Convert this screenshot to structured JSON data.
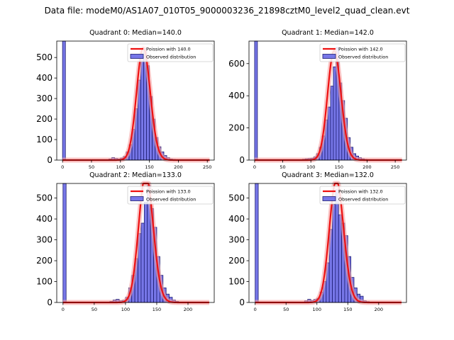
{
  "figure": {
    "suptitle": "Data file: modeM0/AS1A07_010T05_9000003236_21898cztM0_level2_quad_clean.evt"
  },
  "colors": {
    "bar_fill": "#7777e8",
    "bar_edge": "#1c1c70",
    "curve": "#ee1111",
    "curve_glow": "#f7a0a0"
  },
  "chart_data": [
    {
      "type": "bar",
      "title": "Quadrant 0: Median=140.0",
      "bin_width": 5,
      "xlim": [
        -10,
        262
      ],
      "ylim": [
        0,
        580
      ],
      "xticks": [
        0,
        50,
        100,
        150,
        200,
        250
      ],
      "yticks": [
        0,
        100,
        200,
        300,
        400,
        500
      ],
      "bins": [
        0,
        80,
        85,
        90,
        95,
        100,
        105,
        110,
        115,
        120,
        125,
        130,
        135,
        140,
        145,
        150,
        155,
        160,
        165,
        170,
        175,
        180,
        185,
        190
      ],
      "values": [
        580,
        5,
        12,
        8,
        5,
        10,
        18,
        40,
        75,
        150,
        250,
        390,
        515,
        545,
        460,
        310,
        200,
        110,
        65,
        40,
        22,
        12,
        5,
        3
      ],
      "poisson_mean": 140,
      "legend": [
        "Poission with 140.0",
        "Observed distribution"
      ]
    },
    {
      "type": "bar",
      "title": "Quadrant 1: Median=142.0",
      "bin_width": 5,
      "xlim": [
        -10,
        270
      ],
      "ylim": [
        0,
        740
      ],
      "xticks": [
        0,
        50,
        100,
        150,
        200,
        250
      ],
      "yticks": [
        0,
        200,
        400,
        600
      ],
      "bins": [
        0,
        85,
        90,
        95,
        100,
        105,
        110,
        115,
        120,
        125,
        130,
        135,
        140,
        145,
        150,
        155,
        160,
        165,
        170,
        175,
        180,
        185,
        190,
        195
      ],
      "values": [
        740,
        5,
        8,
        10,
        12,
        20,
        40,
        80,
        150,
        250,
        330,
        460,
        580,
        700,
        480,
        370,
        260,
        140,
        80,
        40,
        25,
        15,
        8,
        4
      ],
      "poisson_mean": 142,
      "legend": [
        "Poission with 142.0",
        "Observed distribution"
      ]
    },
    {
      "type": "bar",
      "title": "Quadrant 2: Median=133.0",
      "bin_width": 5,
      "xlim": [
        -10,
        242
      ],
      "ylim": [
        0,
        570
      ],
      "xticks": [
        0,
        50,
        100,
        150,
        200
      ],
      "yticks": [
        0,
        100,
        200,
        300,
        400,
        500
      ],
      "bins": [
        0,
        75,
        80,
        85,
        90,
        95,
        100,
        105,
        110,
        115,
        120,
        125,
        130,
        135,
        140,
        145,
        150,
        155,
        160,
        165,
        170,
        175,
        180
      ],
      "values": [
        570,
        5,
        12,
        15,
        8,
        10,
        25,
        70,
        130,
        210,
        330,
        380,
        480,
        560,
        450,
        360,
        220,
        130,
        70,
        40,
        25,
        12,
        5
      ],
      "poisson_mean": 133,
      "legend": [
        "Poission with 133.0",
        "Observed distribution"
      ]
    },
    {
      "type": "bar",
      "title": "Quadrant 3: Median=132.0",
      "bin_width": 5,
      "xlim": [
        -10,
        245
      ],
      "ylim": [
        0,
        570
      ],
      "xticks": [
        0,
        50,
        100,
        150,
        200
      ],
      "yticks": [
        0,
        100,
        200,
        300,
        400,
        500
      ],
      "bins": [
        0,
        80,
        85,
        90,
        95,
        100,
        105,
        110,
        115,
        120,
        125,
        130,
        135,
        140,
        145,
        150,
        155,
        160,
        165,
        170,
        175,
        180
      ],
      "values": [
        570,
        8,
        15,
        10,
        15,
        20,
        50,
        100,
        190,
        350,
        470,
        540,
        420,
        380,
        320,
        220,
        120,
        70,
        40,
        30,
        8,
        4
      ],
      "poisson_mean": 132,
      "legend": [
        "Poission with 132.0",
        "Observed distribution"
      ]
    }
  ]
}
